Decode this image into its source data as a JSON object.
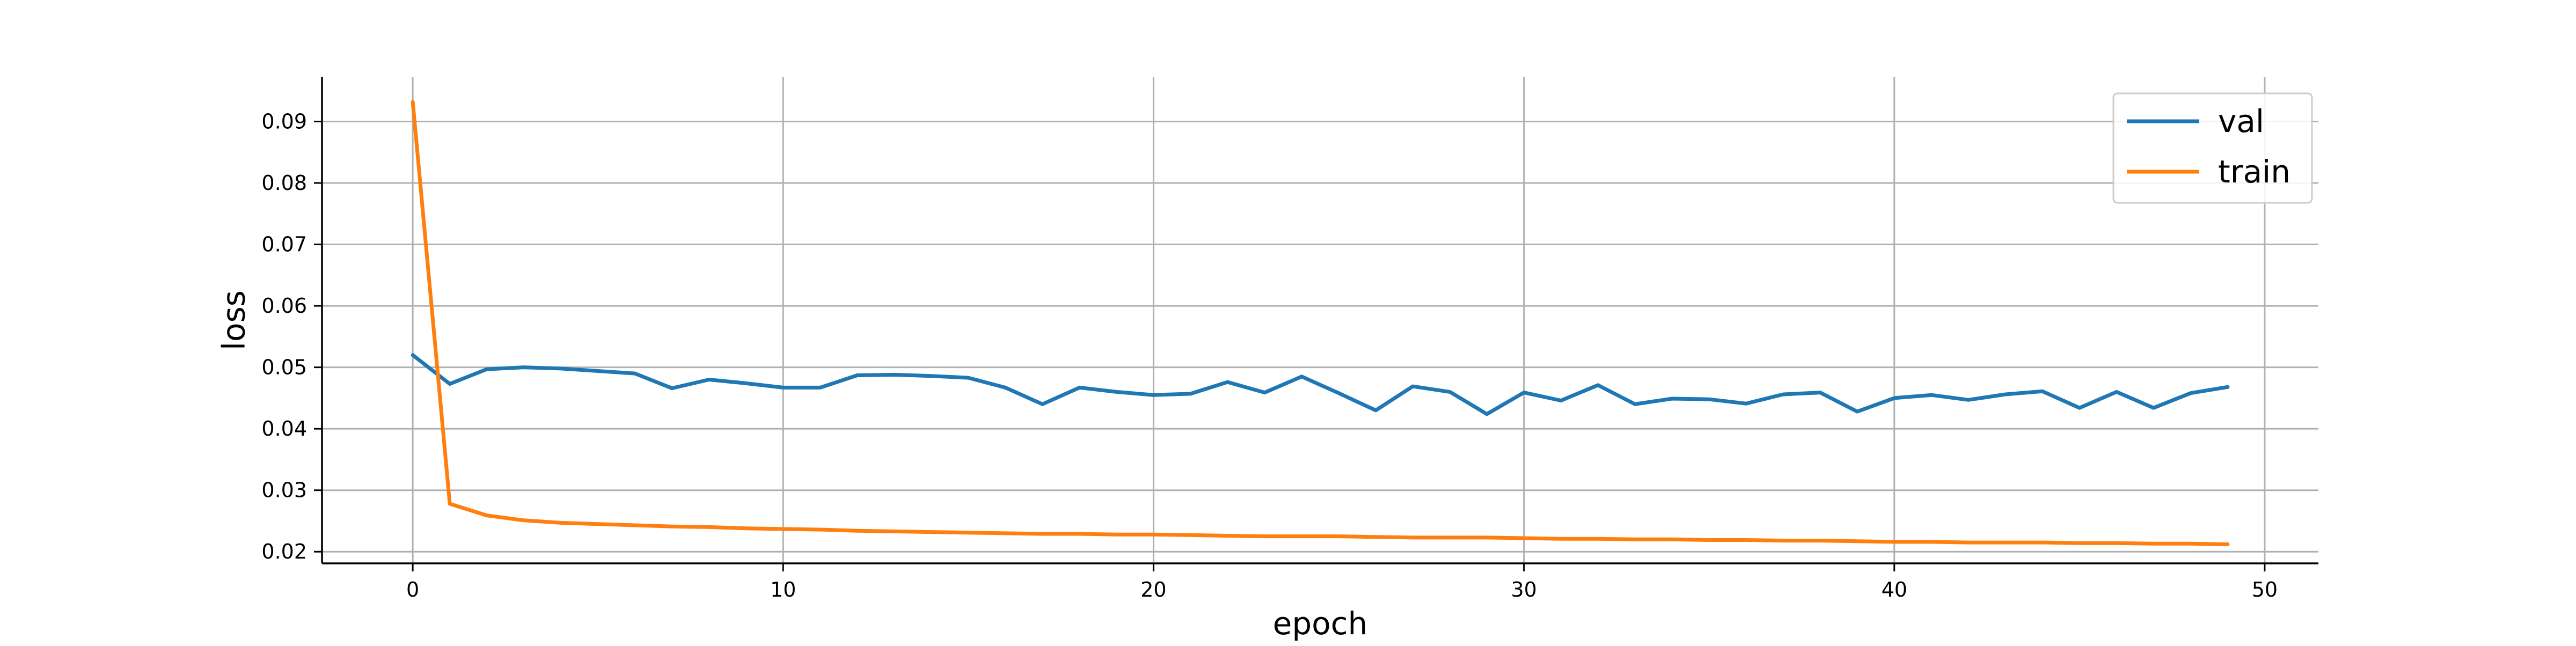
{
  "chart_data": {
    "type": "line",
    "title": "",
    "xlabel": "epoch",
    "ylabel": "loss",
    "xlim": [
      -2.45,
      51.45
    ],
    "ylim": [
      0.0181,
      0.0972
    ],
    "grid": true,
    "legend_position": "top-right",
    "x_ticks": [
      0,
      10,
      20,
      30,
      40,
      50
    ],
    "y_ticks": [
      0.02,
      0.03,
      0.04,
      0.05,
      0.06,
      0.07,
      0.08,
      0.09
    ],
    "x_tick_labels": [
      "0",
      "10",
      "20",
      "30",
      "40",
      "50"
    ],
    "y_tick_labels": [
      "0.02",
      "0.03",
      "0.04",
      "0.05",
      "0.06",
      "0.07",
      "0.08",
      "0.09"
    ],
    "x": [
      0,
      1,
      2,
      3,
      4,
      5,
      6,
      7,
      8,
      9,
      10,
      11,
      12,
      13,
      14,
      15,
      16,
      17,
      18,
      19,
      20,
      21,
      22,
      23,
      24,
      25,
      26,
      27,
      28,
      29,
      30,
      31,
      32,
      33,
      34,
      35,
      36,
      37,
      38,
      39,
      40,
      41,
      42,
      43,
      44,
      45,
      46,
      47,
      48,
      49
    ],
    "series": [
      {
        "name": "val",
        "color": "#1f77b4",
        "values": [
          0.052,
          0.0473,
          0.0497,
          0.05,
          0.0498,
          0.0494,
          0.049,
          0.0466,
          0.048,
          0.0474,
          0.0467,
          0.0467,
          0.0487,
          0.0488,
          0.0486,
          0.0483,
          0.0467,
          0.044,
          0.0467,
          0.046,
          0.0455,
          0.0457,
          0.0476,
          0.0459,
          0.0485,
          0.0458,
          0.043,
          0.0469,
          0.046,
          0.0424,
          0.0459,
          0.0446,
          0.0471,
          0.044,
          0.0449,
          0.0448,
          0.0441,
          0.0456,
          0.0459,
          0.0428,
          0.045,
          0.0455,
          0.0447,
          0.0456,
          0.0461,
          0.0434,
          0.046,
          0.0434,
          0.0458,
          0.0468
        ]
      },
      {
        "name": "train",
        "color": "#ff7f0e",
        "values": [
          0.0932,
          0.0278,
          0.0259,
          0.0251,
          0.0247,
          0.0245,
          0.0243,
          0.0241,
          0.024,
          0.0238,
          0.0237,
          0.0236,
          0.0234,
          0.0233,
          0.0232,
          0.0231,
          0.023,
          0.0229,
          0.0229,
          0.0228,
          0.0228,
          0.0227,
          0.0226,
          0.0225,
          0.0225,
          0.0225,
          0.0224,
          0.0223,
          0.0223,
          0.0223,
          0.0222,
          0.0221,
          0.0221,
          0.022,
          0.022,
          0.0219,
          0.0219,
          0.0218,
          0.0218,
          0.0217,
          0.0216,
          0.0216,
          0.0215,
          0.0215,
          0.0215,
          0.0214,
          0.0214,
          0.0213,
          0.0213,
          0.0212
        ]
      }
    ]
  }
}
